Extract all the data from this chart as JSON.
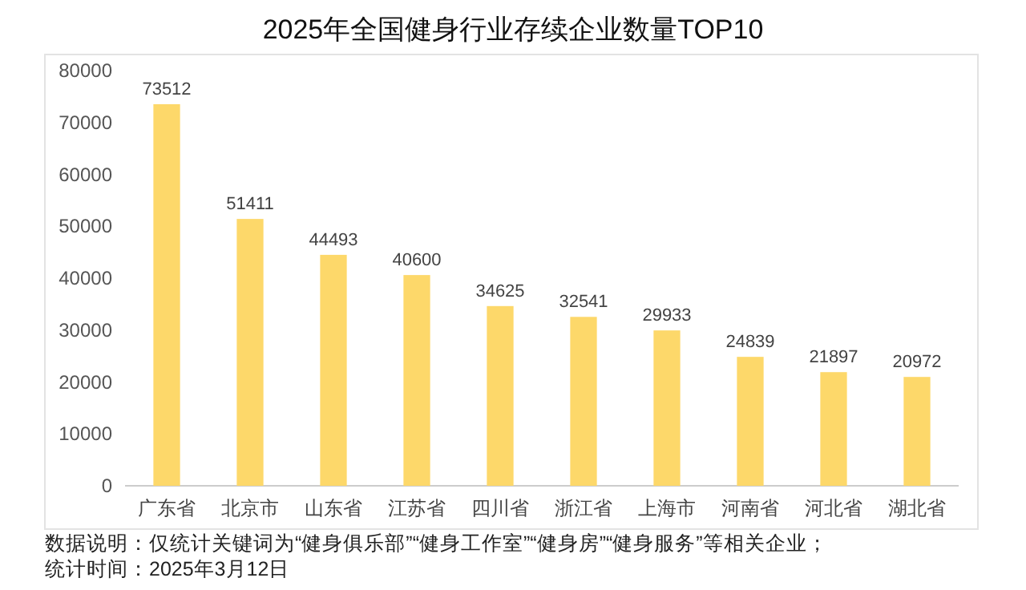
{
  "chart_data": {
    "type": "bar",
    "title": "2025年全国健身行业存续企业数量TOP10",
    "categories": [
      "广东省",
      "北京市",
      "山东省",
      "江苏省",
      "四川省",
      "浙江省",
      "上海市",
      "河南省",
      "河北省",
      "湖北省"
    ],
    "values": [
      73512,
      51411,
      44493,
      40600,
      34625,
      32541,
      29933,
      24839,
      21897,
      20972
    ],
    "color": "#fdd86a",
    "ylim": [
      0,
      80000
    ],
    "yticks": [
      0,
      10000,
      20000,
      30000,
      40000,
      50000,
      60000,
      70000,
      80000
    ],
    "data_labels": true,
    "grid": false,
    "annotations": [
      "数据说明：仅统计关键词为“健身俱乐部”“健身工作室”“健身房”“健身服务”等相关企业；",
      "统计时间：2025年3月12日"
    ]
  }
}
